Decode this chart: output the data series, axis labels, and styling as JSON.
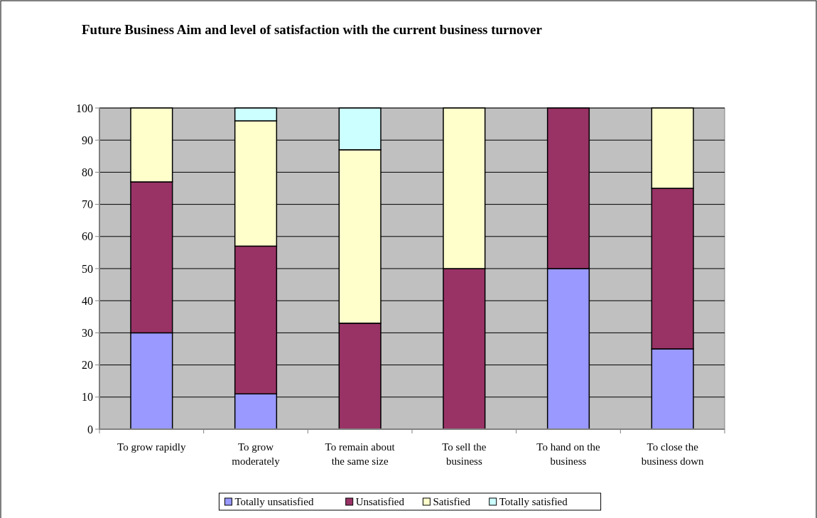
{
  "chart_data": {
    "type": "bar",
    "title": "Future Business Aim and level of satisfaction with the current business turnover",
    "categories": [
      "To grow rapidly",
      "To grow moderately",
      "To remain about the same size",
      "To sell the business",
      "To hand on the business",
      "To close the business down"
    ],
    "stacked": true,
    "series": [
      {
        "name": "Totally unsatisfied",
        "color": "#9999ff",
        "values": [
          30,
          11,
          0,
          0,
          50,
          25
        ]
      },
      {
        "name": "Unsatisfied",
        "color": "#993366",
        "values": [
          47,
          46,
          33,
          50,
          50,
          50
        ]
      },
      {
        "name": "Satisfied",
        "color": "#ffffcc",
        "values": [
          23,
          39,
          54,
          50,
          0,
          25
        ]
      },
      {
        "name": "Totally satisfied",
        "color": "#ccffff",
        "values": [
          0,
          4,
          13,
          0,
          0,
          0
        ]
      }
    ],
    "ylim": [
      0,
      100
    ],
    "yticks": [
      0,
      10,
      20,
      30,
      40,
      50,
      60,
      70,
      80,
      90,
      100
    ],
    "grid": "y",
    "legend": "bottom"
  }
}
